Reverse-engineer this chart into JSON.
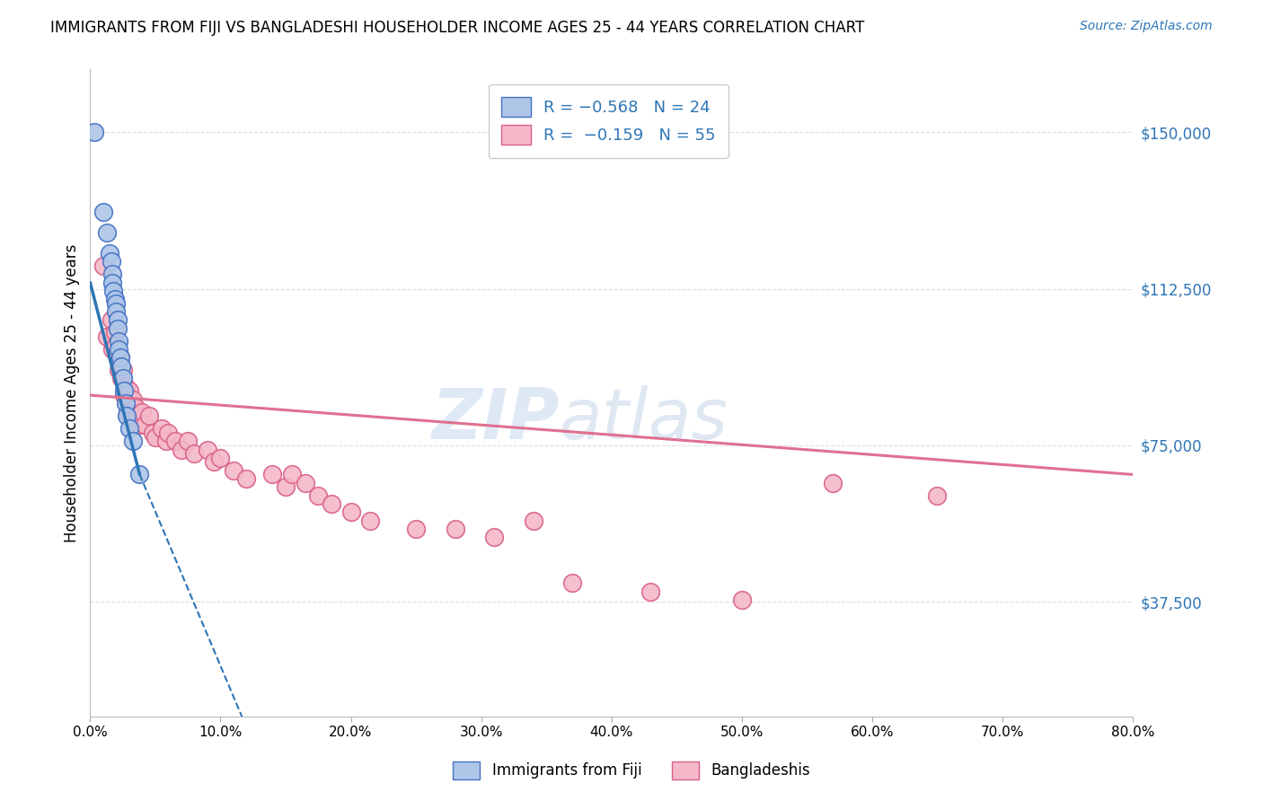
{
  "title": "IMMIGRANTS FROM FIJI VS BANGLADESHI HOUSEHOLDER INCOME AGES 25 - 44 YEARS CORRELATION CHART",
  "source": "Source: ZipAtlas.com",
  "xlabel_ticks": [
    "0.0%",
    "10.0%",
    "20.0%",
    "30.0%",
    "40.0%",
    "50.0%",
    "60.0%",
    "70.0%",
    "80.0%"
  ],
  "xlabel_vals": [
    0.0,
    0.1,
    0.2,
    0.3,
    0.4,
    0.5,
    0.6,
    0.7,
    0.8
  ],
  "ylabel_ticks": [
    "$37,500",
    "$75,000",
    "$112,500",
    "$150,000"
  ],
  "ylabel_vals": [
    37500,
    75000,
    112500,
    150000
  ],
  "ylabel_label": "Householder Income Ages 25 - 44 years",
  "xlim": [
    0.0,
    0.8
  ],
  "ylim": [
    10000,
    165000
  ],
  "fiji_color": "#aec6e8",
  "fiji_edge_color": "#4472c4",
  "bangladeshi_color": "#f4b8c8",
  "bangladeshi_edge_color": "#d96088",
  "fiji_R": -0.568,
  "fiji_N": 24,
  "bangladeshi_R": -0.159,
  "bangladeshi_N": 55,
  "fiji_scatter_x": [
    0.003,
    0.01,
    0.013,
    0.015,
    0.016,
    0.017,
    0.017,
    0.018,
    0.019,
    0.02,
    0.02,
    0.021,
    0.021,
    0.022,
    0.022,
    0.023,
    0.024,
    0.025,
    0.026,
    0.027,
    0.028,
    0.03,
    0.033,
    0.038
  ],
  "fiji_scatter_y": [
    150000,
    131000,
    126000,
    121000,
    119000,
    116000,
    114000,
    112000,
    110000,
    109000,
    107000,
    105000,
    103000,
    100000,
    98000,
    96000,
    94000,
    91000,
    88000,
    85000,
    82000,
    79000,
    76000,
    68000
  ],
  "bangladeshi_scatter_x": [
    0.01,
    0.013,
    0.016,
    0.017,
    0.019,
    0.02,
    0.021,
    0.022,
    0.023,
    0.024,
    0.025,
    0.026,
    0.027,
    0.028,
    0.029,
    0.03,
    0.032,
    0.033,
    0.035,
    0.036,
    0.038,
    0.04,
    0.042,
    0.045,
    0.048,
    0.05,
    0.055,
    0.058,
    0.06,
    0.065,
    0.07,
    0.075,
    0.08,
    0.09,
    0.095,
    0.1,
    0.11,
    0.12,
    0.14,
    0.15,
    0.155,
    0.165,
    0.175,
    0.185,
    0.2,
    0.215,
    0.25,
    0.28,
    0.31,
    0.34,
    0.37,
    0.43,
    0.5,
    0.57,
    0.65
  ],
  "bangladeshi_scatter_y": [
    118000,
    101000,
    105000,
    98000,
    102000,
    99000,
    97000,
    93000,
    96000,
    91000,
    93000,
    87000,
    89000,
    86000,
    83000,
    88000,
    84000,
    86000,
    84000,
    82000,
    80000,
    83000,
    80000,
    82000,
    78000,
    77000,
    79000,
    76000,
    78000,
    76000,
    74000,
    76000,
    73000,
    74000,
    71000,
    72000,
    69000,
    67000,
    68000,
    65000,
    68000,
    66000,
    63000,
    61000,
    59000,
    57000,
    55000,
    55000,
    53000,
    57000,
    42000,
    40000,
    38000,
    66000,
    63000
  ],
  "watermark_text": "ZIPatlas",
  "fiji_line_color": "#2e75b6",
  "bangladeshi_line_color": "#e07090",
  "background_color": "#ffffff",
  "grid_color": "#dddddd",
  "fiji_line_x0": 0.0,
  "fiji_line_y0": 114000,
  "fiji_line_x1": 0.038,
  "fiji_line_y1": 68000,
  "fiji_line_xdash0": 0.038,
  "fiji_line_ydash0": 68000,
  "fiji_line_xdash1": 0.13,
  "fiji_line_ydash1": 0,
  "bang_line_x0": 0.0,
  "bang_line_y0": 87000,
  "bang_line_x1": 0.8,
  "bang_line_y1": 68000
}
